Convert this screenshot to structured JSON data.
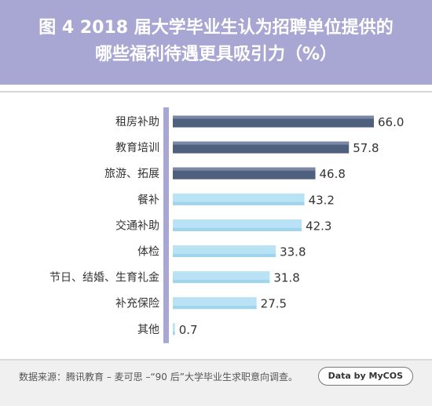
{
  "header": {
    "title_line1": "图 4  2018 届大学毕业生认为招聘单位提供的",
    "title_line2": "哪些福利待遇更具吸引力（%）",
    "bg_color": "#a8a6d3"
  },
  "chart_data": {
    "type": "bar",
    "orientation": "horizontal",
    "categories": [
      "租房补助",
      "教育培训",
      "旅游、拓展",
      "餐补",
      "交通补助",
      "体检",
      "节日、结婚、生育礼金",
      "补充保险",
      "其他"
    ],
    "values": [
      66.0,
      57.8,
      46.8,
      43.2,
      42.3,
      33.8,
      31.8,
      27.5,
      0.7
    ],
    "value_labels": [
      "66.0",
      "57.8",
      "46.8",
      "43.2",
      "42.3",
      "33.8",
      "31.8",
      "27.5",
      "0.7"
    ],
    "xlim": [
      0,
      70
    ],
    "unit": "%",
    "highlight_count": 3,
    "colors": {
      "top": "#4f5f7e",
      "rest": "#b9e2f4",
      "axis": "#a8a6d3"
    },
    "grid": false
  },
  "footer": {
    "source": "数据来源：腾讯教育 – 麦可思 –“90 后”大学毕业生求职意向调查。",
    "badge": "Data by MyCOS"
  }
}
